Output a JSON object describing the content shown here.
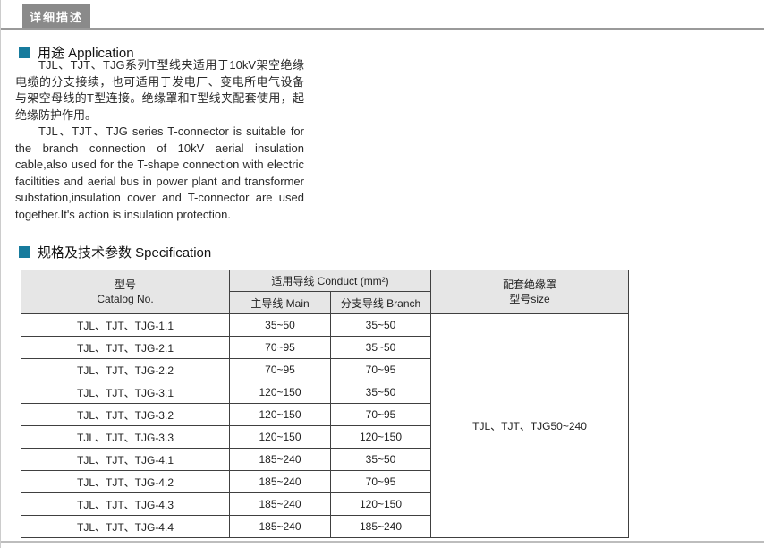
{
  "page": {
    "tab_label": "详细描述"
  },
  "colors": {
    "accent_teal": "#177b9d",
    "tab_gray": "#8a8a8a",
    "table_header_bg": "#e6e6e6",
    "divider_top": "#9a9a9a",
    "divider_bottom": "#bdbdbd"
  },
  "sections": {
    "application": {
      "heading": "用途 Application",
      "paragraph_zh": "TJL、TJT、TJG系列T型线夹适用于10kV架空绝缘电缆的分支接续，也可适用于发电厂、变电所电气设备与架空母线的T型连接。绝缘罩和T型线夹配套使用，起绝缘防护作用。",
      "paragraph_en": "TJL、TJT、TJG series T-connector is suitable for the branch connection of 10kV aerial insulation cable,also used for the T-shape connection with electric faciltities and aerial bus in power plant and transformer substation,insulation cover and T-connector are used together.It's action is insulation protection."
    },
    "specification": {
      "heading": "规格及技术参数 Specification"
    }
  },
  "table": {
    "headers": {
      "catalog_line1": "型号",
      "catalog_line2": "Catalog No.",
      "conduct_group": "适用导线 Conduct (mm²)",
      "main": "主导线 Main",
      "branch": "分支导线 Branch",
      "cover_line1": "配套绝缘罩",
      "cover_line2": "型号size"
    },
    "rows": [
      {
        "model": "TJL、TJT、TJG-1.1",
        "main": "35~50",
        "branch": "35~50"
      },
      {
        "model": "TJL、TJT、TJG-2.1",
        "main": "70~95",
        "branch": "35~50"
      },
      {
        "model": "TJL、TJT、TJG-2.2",
        "main": "70~95",
        "branch": "70~95"
      },
      {
        "model": "TJL、TJT、TJG-3.1",
        "main": "120~150",
        "branch": "35~50"
      },
      {
        "model": "TJL、TJT、TJG-3.2",
        "main": "120~150",
        "branch": "70~95"
      },
      {
        "model": "TJL、TJT、TJG-3.3",
        "main": "120~150",
        "branch": "120~150"
      },
      {
        "model": "TJL、TJT、TJG-4.1",
        "main": "185~240",
        "branch": "35~50"
      },
      {
        "model": "TJL、TJT、TJG-4.2",
        "main": "185~240",
        "branch": "70~95"
      },
      {
        "model": "TJL、TJT、TJG-4.3",
        "main": "185~240",
        "branch": "120~150"
      },
      {
        "model": "TJL、TJT、TJG-4.4",
        "main": "185~240",
        "branch": "185~240"
      }
    ],
    "cover_value": "TJL、TJT、TJG50~240"
  }
}
